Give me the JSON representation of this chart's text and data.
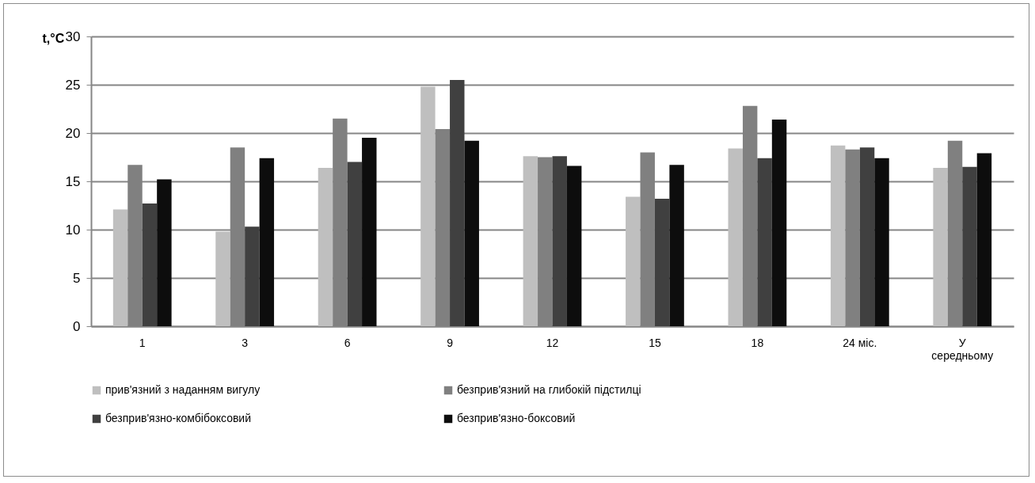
{
  "chart_data": {
    "type": "bar",
    "ylabel": "t,°C",
    "categories": [
      "1",
      "3",
      "6",
      "9",
      "12",
      "15",
      "18",
      "24 міс.",
      "У середньому"
    ],
    "series": [
      {
        "name": "прив'язний з наданням вигулу",
        "color": "#bfbfbf",
        "values": [
          12.1,
          9.8,
          16.4,
          24.8,
          17.6,
          13.4,
          18.4,
          18.7,
          16.4
        ]
      },
      {
        "name": "безприв'язний на глибокій підстилці",
        "color": "#808080",
        "values": [
          16.7,
          18.5,
          21.5,
          20.4,
          17.5,
          18.0,
          22.8,
          18.3,
          19.2
        ]
      },
      {
        "name": "безприв'язно-комбібоксовий",
        "color": "#404040",
        "values": [
          12.7,
          10.3,
          17.0,
          25.5,
          17.6,
          13.2,
          17.4,
          18.5,
          16.5
        ]
      },
      {
        "name": "безприв'язно-боксовий",
        "color": "#0d0d0d",
        "values": [
          15.2,
          17.4,
          19.5,
          19.2,
          16.6,
          16.7,
          21.4,
          17.4,
          17.9
        ]
      }
    ],
    "ylim": [
      0,
      30
    ],
    "yticks": [
      0,
      5,
      10,
      15,
      20,
      25,
      30
    ],
    "grid": "y",
    "legend": "bottom"
  }
}
